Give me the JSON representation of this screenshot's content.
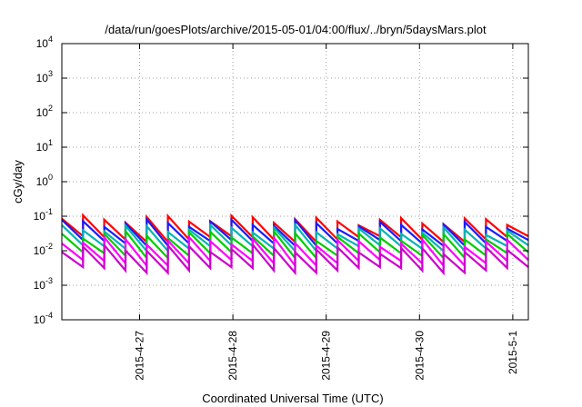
{
  "chart_data": {
    "type": "line",
    "title": "/data/run/goesPlots/archive/2015-05-01/04:00/flux/../bryn/5daysMars.plot",
    "xlabel": "Coordinated Universal Time (UTC)",
    "ylabel": "cGy/day",
    "yscale": "log",
    "ylim": [
      0.0001,
      10000
    ],
    "y_ticks": [
      {
        "base": "10",
        "exp": "-4"
      },
      {
        "base": "10",
        "exp": "-3"
      },
      {
        "base": "10",
        "exp": "-2"
      },
      {
        "base": "10",
        "exp": "-1"
      },
      {
        "base": "10",
        "exp": "0"
      },
      {
        "base": "10",
        "exp": "1"
      },
      {
        "base": "10",
        "exp": "2"
      },
      {
        "base": "10",
        "exp": "3"
      },
      {
        "base": "10",
        "exp": "4"
      }
    ],
    "x_start": "2015-04-26T04:00",
    "x_end": "2015-05-01T04:00",
    "x_ticks": [
      "2015-4-27",
      "2015-4-28",
      "2015-4-29",
      "2015-4-30",
      "2015-5-1"
    ],
    "grid": true,
    "colors": [
      "#ff0000",
      "#cc2222",
      "#1a1aff",
      "#00b4b4",
      "#00cc00",
      "#ff00ff",
      "#cc00cc"
    ],
    "series": [
      {
        "name": "",
        "color": "#ff0000",
        "peak": 0.085,
        "floor": 0.022
      },
      {
        "name": "",
        "color": "#1a1aff",
        "peak": 0.065,
        "floor": 0.017
      },
      {
        "name": "",
        "color": "#00b4b4",
        "peak": 0.045,
        "floor": 0.012
      },
      {
        "name": "",
        "color": "#00cc00",
        "peak": 0.03,
        "floor": 0.0075
      },
      {
        "name": "",
        "color": "#ff00ff",
        "peak": 0.02,
        "floor": 0.0045
      },
      {
        "name": "",
        "color": "#cc00cc",
        "peak": 0.012,
        "floor": 0.0028
      }
    ]
  }
}
